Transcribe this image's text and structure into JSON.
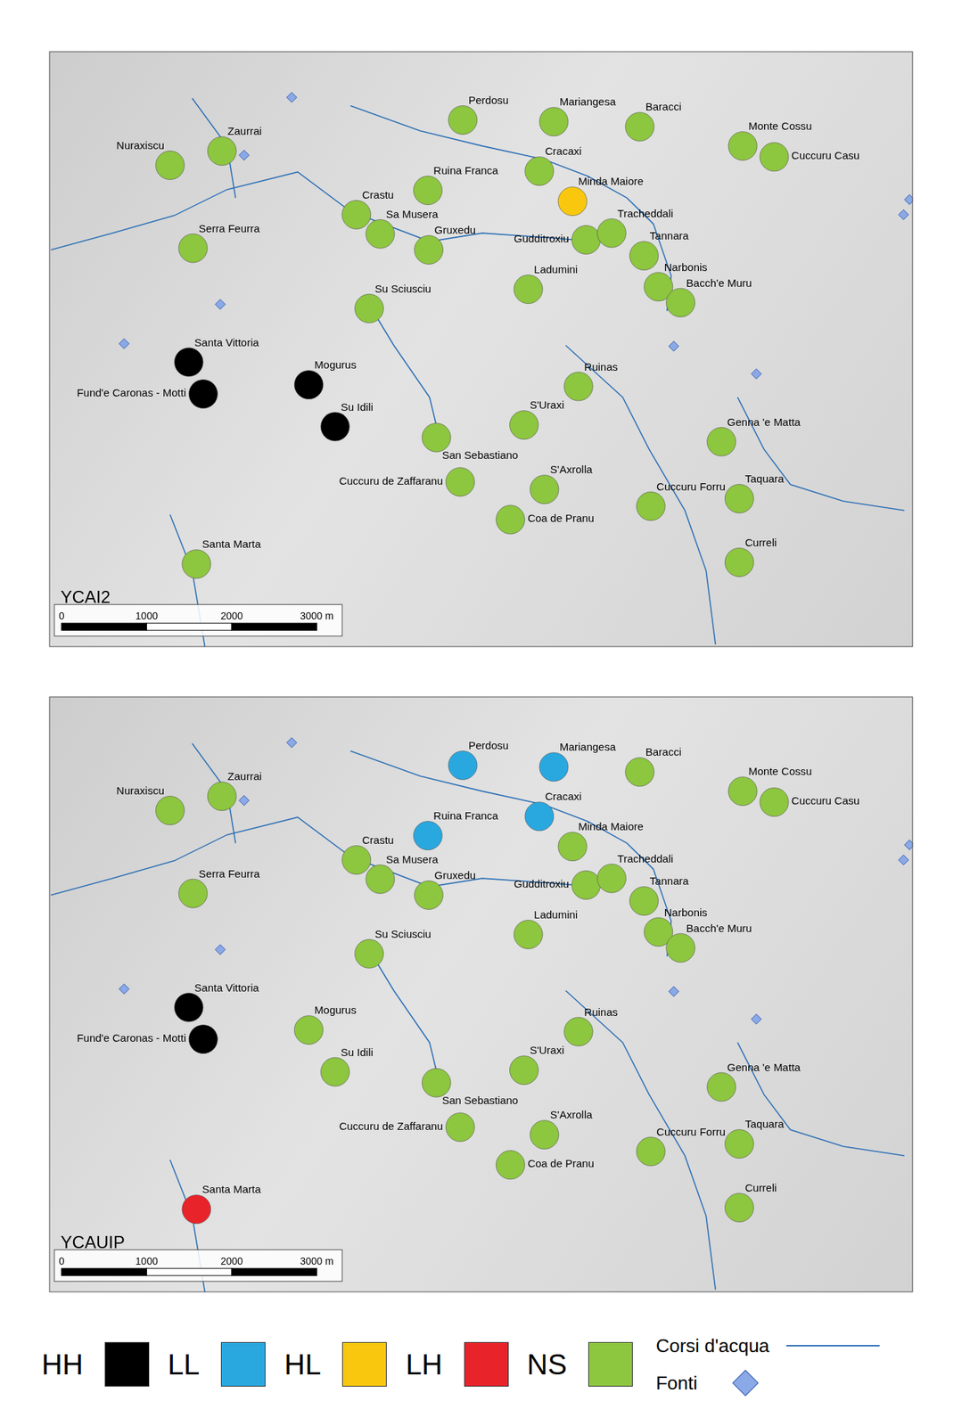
{
  "chart_data": [
    {
      "type": "scatter",
      "title": "YCAI2",
      "xlim": [
        0,
        10150
      ],
      "ylim": [
        0,
        7110
      ],
      "tick_labels": false,
      "legend": "bottom",
      "scale_bar": {
        "ticks": [
          0,
          1000,
          2000,
          {
            "value": 3000,
            "label": "3000 m"
          }
        ]
      },
      "series": [
        {
          "name": "HH",
          "color": "#000000",
          "marker": "circle",
          "points": [
            {
              "name": "Santa Vittoria",
              "x": 1640,
              "y": 3400
            },
            {
              "name": "Fund'e Caronas - Motti",
              "x": 1810,
              "y": 3020
            },
            {
              "name": "Mogurus",
              "x": 3050,
              "y": 3130
            },
            {
              "name": "Su Idili",
              "x": 3360,
              "y": 2630
            }
          ]
        },
        {
          "name": "LL",
          "color": "#29a8e0",
          "marker": "circle",
          "points": []
        },
        {
          "name": "HL",
          "color": "#f9c80e",
          "marker": "circle",
          "points": [
            {
              "name": "Minda Maiore",
              "x": 6150,
              "y": 5320
            }
          ]
        },
        {
          "name": "LH",
          "color": "#e8232a",
          "marker": "circle",
          "points": []
        },
        {
          "name": "NS",
          "color": "#8dc63f",
          "marker": "circle",
          "points": [
            {
              "name": "Nuraxiscu",
              "x": 1420,
              "y": 5750
            },
            {
              "name": "Zaurrai",
              "x": 2030,
              "y": 5920
            },
            {
              "name": "Serra Feurra",
              "x": 1690,
              "y": 4760
            },
            {
              "name": "Perdosu",
              "x": 4860,
              "y": 6290
            },
            {
              "name": "Mariangesa",
              "x": 5930,
              "y": 6270
            },
            {
              "name": "Baracci",
              "x": 6940,
              "y": 6210
            },
            {
              "name": "Monte Cossu",
              "x": 8150,
              "y": 5980
            },
            {
              "name": "Cuccuru Casu",
              "x": 8520,
              "y": 5850
            },
            {
              "name": "Cracaxi",
              "x": 5760,
              "y": 5680
            },
            {
              "name": "Ruina Franca",
              "x": 4450,
              "y": 5450
            },
            {
              "name": "Crastu",
              "x": 3610,
              "y": 5160
            },
            {
              "name": "Sa Musera",
              "x": 3890,
              "y": 4930
            },
            {
              "name": "Gruxedu",
              "x": 4460,
              "y": 4740
            },
            {
              "name": "Gudditroxiu",
              "x": 6310,
              "y": 4860
            },
            {
              "name": "Tracheddali",
              "x": 6610,
              "y": 4940
            },
            {
              "name": "Tannara",
              "x": 6990,
              "y": 4670
            },
            {
              "name": "Ladumini",
              "x": 5630,
              "y": 4270
            },
            {
              "name": "Narbonis",
              "x": 7160,
              "y": 4300
            },
            {
              "name": "Bacch'e Muru",
              "x": 7420,
              "y": 4110
            },
            {
              "name": "Su Sciusciu",
              "x": 3760,
              "y": 4040
            },
            {
              "name": "San Sebastiano",
              "x": 4550,
              "y": 2500
            },
            {
              "name": "Ruinas",
              "x": 6220,
              "y": 3110
            },
            {
              "name": "S'Uraxi",
              "x": 5580,
              "y": 2650
            },
            {
              "name": "Genna 'e Matta",
              "x": 7900,
              "y": 2450
            },
            {
              "name": "Cuccuru de Zaffaranu",
              "x": 4830,
              "y": 1970
            },
            {
              "name": "S'Axrolla",
              "x": 5820,
              "y": 1880
            },
            {
              "name": "Cuccuru Forru",
              "x": 7070,
              "y": 1680
            },
            {
              "name": "Coa de Pranu",
              "x": 5420,
              "y": 1520
            },
            {
              "name": "Taquara",
              "x": 8110,
              "y": 1770
            },
            {
              "name": "Curreli",
              "x": 8110,
              "y": 1010
            },
            {
              "name": "Santa Marta",
              "x": 1730,
              "y": 990
            }
          ]
        },
        {
          "name": "Corsi d'acqua",
          "type": "line",
          "color": "#2c6fb5",
          "lines": [
            [
              [
                3540,
                6460
              ],
              [
                4360,
                6160
              ],
              [
                5090,
                5980
              ],
              [
                5810,
                5820
              ],
              [
                6330,
                5620
              ],
              [
                6790,
                5360
              ],
              [
                7100,
                5050
              ],
              [
                7310,
                4430
              ],
              [
                7260,
                4010
              ]
            ],
            [
              [
                6070,
                3600
              ],
              [
                6740,
                2980
              ],
              [
                7050,
                2360
              ],
              [
                7470,
                1630
              ],
              [
                7720,
                910
              ],
              [
                7830,
                30
              ]
            ],
            [
              [
                8090,
                2980
              ],
              [
                8400,
                2360
              ],
              [
                8710,
                1940
              ],
              [
                9330,
                1740
              ],
              [
                10050,
                1630
              ]
            ],
            [
              [
                1420,
                1580
              ],
              [
                1680,
                910
              ],
              [
                1830,
                0
              ]
            ],
            [
              [
                20,
                4740
              ],
              [
                740,
                4940
              ],
              [
                1470,
                5150
              ],
              [
                2090,
                5460
              ],
              [
                2920,
                5670
              ],
              [
                3540,
                5200
              ],
              [
                4470,
                4840
              ],
              [
                5090,
                4940
              ],
              [
                5810,
                4890
              ],
              [
                6430,
                4840
              ]
            ],
            [
              [
                3740,
                4120
              ],
              [
                4050,
                3600
              ],
              [
                4470,
                2980
              ],
              [
                4570,
                2560
              ]
            ],
            [
              [
                1680,
                6550
              ],
              [
                2090,
                5980
              ],
              [
                2190,
                5360
              ]
            ]
          ]
        },
        {
          "name": "Fonti",
          "color": "#8aa9e6",
          "marker": "diamond",
          "points": [
            {
              "x": 2850,
              "y": 6560
            },
            {
              "x": 2290,
              "y": 5870
            },
            {
              "x": 2010,
              "y": 4090
            },
            {
              "x": 880,
              "y": 3620
            },
            {
              "x": 7340,
              "y": 3590
            },
            {
              "x": 8310,
              "y": 3260
            },
            {
              "x": 10110,
              "y": 5340
            },
            {
              "x": 10040,
              "y": 5160
            }
          ]
        }
      ]
    },
    {
      "type": "scatter",
      "title": "YCAUIP",
      "xlim": [
        0,
        10150
      ],
      "ylim": [
        0,
        7110
      ],
      "tick_labels": false,
      "legend": "bottom",
      "scale_bar": {
        "ticks": [
          0,
          1000,
          2000,
          {
            "value": 3000,
            "label": "3000 m"
          }
        ]
      },
      "series": [
        {
          "name": "HH",
          "color": "#000000",
          "marker": "circle",
          "points": [
            {
              "name": "Santa Vittoria",
              "x": 1640,
              "y": 3400
            },
            {
              "name": "Fund'e Caronas - Motti",
              "x": 1810,
              "y": 3020
            }
          ]
        },
        {
          "name": "LL",
          "color": "#29a8e0",
          "marker": "circle",
          "points": [
            {
              "name": "Perdosu",
              "x": 4860,
              "y": 6290
            },
            {
              "name": "Mariangesa",
              "x": 5930,
              "y": 6270
            },
            {
              "name": "Cracaxi",
              "x": 5760,
              "y": 5680
            },
            {
              "name": "Ruina Franca",
              "x": 4450,
              "y": 5450
            }
          ]
        },
        {
          "name": "HL",
          "color": "#f9c80e",
          "marker": "circle",
          "points": []
        },
        {
          "name": "LH",
          "color": "#e8232a",
          "marker": "circle",
          "points": [
            {
              "name": "Santa Marta",
              "x": 1730,
              "y": 990
            }
          ]
        },
        {
          "name": "NS",
          "color": "#8dc63f",
          "marker": "circle",
          "points": [
            {
              "name": "Nuraxiscu",
              "x": 1420,
              "y": 5750
            },
            {
              "name": "Zaurrai",
              "x": 2030,
              "y": 5920
            },
            {
              "name": "Serra Feurra",
              "x": 1690,
              "y": 4760
            },
            {
              "name": "Baracci",
              "x": 6940,
              "y": 6210
            },
            {
              "name": "Monte Cossu",
              "x": 8150,
              "y": 5980
            },
            {
              "name": "Cuccuru Casu",
              "x": 8520,
              "y": 5850
            },
            {
              "name": "Minda Maiore",
              "x": 6150,
              "y": 5320
            },
            {
              "name": "Crastu",
              "x": 3610,
              "y": 5160
            },
            {
              "name": "Sa Musera",
              "x": 3890,
              "y": 4930
            },
            {
              "name": "Gruxedu",
              "x": 4460,
              "y": 4740
            },
            {
              "name": "Gudditroxiu",
              "x": 6310,
              "y": 4860
            },
            {
              "name": "Tracheddali",
              "x": 6610,
              "y": 4940
            },
            {
              "name": "Tannara",
              "x": 6990,
              "y": 4670
            },
            {
              "name": "Ladumini",
              "x": 5630,
              "y": 4270
            },
            {
              "name": "Narbonis",
              "x": 7160,
              "y": 4300
            },
            {
              "name": "Bacch'e Muru",
              "x": 7420,
              "y": 4110
            },
            {
              "name": "Su Sciusciu",
              "x": 3760,
              "y": 4040
            },
            {
              "name": "Mogurus",
              "x": 3050,
              "y": 3130
            },
            {
              "name": "Su Idili",
              "x": 3360,
              "y": 2630
            },
            {
              "name": "San Sebastiano",
              "x": 4550,
              "y": 2500
            },
            {
              "name": "Ruinas",
              "x": 6220,
              "y": 3110
            },
            {
              "name": "S'Uraxi",
              "x": 5580,
              "y": 2650
            },
            {
              "name": "Genna 'e Matta",
              "x": 7900,
              "y": 2450
            },
            {
              "name": "Cuccuru de Zaffaranu",
              "x": 4830,
              "y": 1970
            },
            {
              "name": "S'Axrolla",
              "x": 5820,
              "y": 1880
            },
            {
              "name": "Cuccuru Forru",
              "x": 7070,
              "y": 1680
            },
            {
              "name": "Coa de Pranu",
              "x": 5420,
              "y": 1520
            },
            {
              "name": "Taquara",
              "x": 8110,
              "y": 1770
            },
            {
              "name": "Curreli",
              "x": 8110,
              "y": 1010
            }
          ]
        },
        {
          "name": "Corsi d'acqua",
          "type": "line",
          "color": "#2c6fb5",
          "lines": [
            [
              [
                3540,
                6460
              ],
              [
                4360,
                6160
              ],
              [
                5090,
                5980
              ],
              [
                5810,
                5820
              ],
              [
                6330,
                5620
              ],
              [
                6790,
                5360
              ],
              [
                7100,
                5050
              ],
              [
                7310,
                4430
              ],
              [
                7260,
                4010
              ]
            ],
            [
              [
                6070,
                3600
              ],
              [
                6740,
                2980
              ],
              [
                7050,
                2360
              ],
              [
                7470,
                1630
              ],
              [
                7720,
                910
              ],
              [
                7830,
                30
              ]
            ],
            [
              [
                8090,
                2980
              ],
              [
                8400,
                2360
              ],
              [
                8710,
                1940
              ],
              [
                9330,
                1740
              ],
              [
                10050,
                1630
              ]
            ],
            [
              [
                1420,
                1580
              ],
              [
                1680,
                910
              ],
              [
                1830,
                0
              ]
            ],
            [
              [
                20,
                4740
              ],
              [
                740,
                4940
              ],
              [
                1470,
                5150
              ],
              [
                2090,
                5460
              ],
              [
                2920,
                5670
              ],
              [
                3540,
                5200
              ],
              [
                4470,
                4840
              ],
              [
                5090,
                4940
              ],
              [
                5810,
                4890
              ],
              [
                6430,
                4840
              ]
            ],
            [
              [
                3740,
                4120
              ],
              [
                4050,
                3600
              ],
              [
                4470,
                2980
              ],
              [
                4570,
                2560
              ]
            ],
            [
              [
                1680,
                6550
              ],
              [
                2090,
                5980
              ],
              [
                2190,
                5360
              ]
            ]
          ]
        },
        {
          "name": "Fonti",
          "color": "#8aa9e6",
          "marker": "diamond",
          "points": [
            {
              "x": 2850,
              "y": 6560
            },
            {
              "x": 2290,
              "y": 5870
            },
            {
              "x": 2010,
              "y": 4090
            },
            {
              "x": 880,
              "y": 3620
            },
            {
              "x": 7340,
              "y": 3590
            },
            {
              "x": 8310,
              "y": 3260
            },
            {
              "x": 10110,
              "y": 5340
            },
            {
              "x": 10040,
              "y": 5160
            }
          ]
        }
      ]
    }
  ]
}
